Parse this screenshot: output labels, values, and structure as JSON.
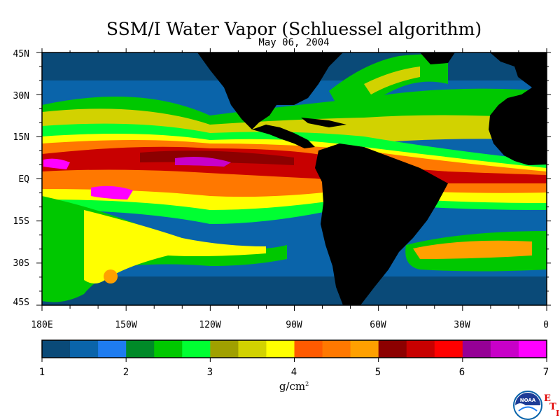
{
  "title": "SSM/I Water Vapor (Schluessel algorithm)",
  "date": "May 06, 2004",
  "lat_labels": [
    "45N",
    "30N",
    "15N",
    "EQ",
    "15S",
    "30S",
    "45S"
  ],
  "lon_labels": [
    "180E",
    "150W",
    "120W",
    "90W",
    "60W",
    "30W",
    "0"
  ],
  "colorbar": {
    "ticks": [
      "1",
      "2",
      "3",
      "4",
      "5",
      "6",
      "7"
    ],
    "unit": "g/cm",
    "unit_sup": "2",
    "colors": [
      "#0a4a78",
      "#0a64aa",
      "#1e7cf0",
      "#008a28",
      "#00c800",
      "#00ff32",
      "#a0a000",
      "#d2d200",
      "#ffff00",
      "#ff5a00",
      "#ff7800",
      "#ffa000",
      "#8c0000",
      "#c80000",
      "#ff0000",
      "#960096",
      "#c800c8",
      "#ff00ff"
    ]
  },
  "land_color": "#000000",
  "logo": {
    "agency": "NOAA",
    "mark_e": "E",
    "mark_t": "T",
    "mark_i": "I"
  }
}
